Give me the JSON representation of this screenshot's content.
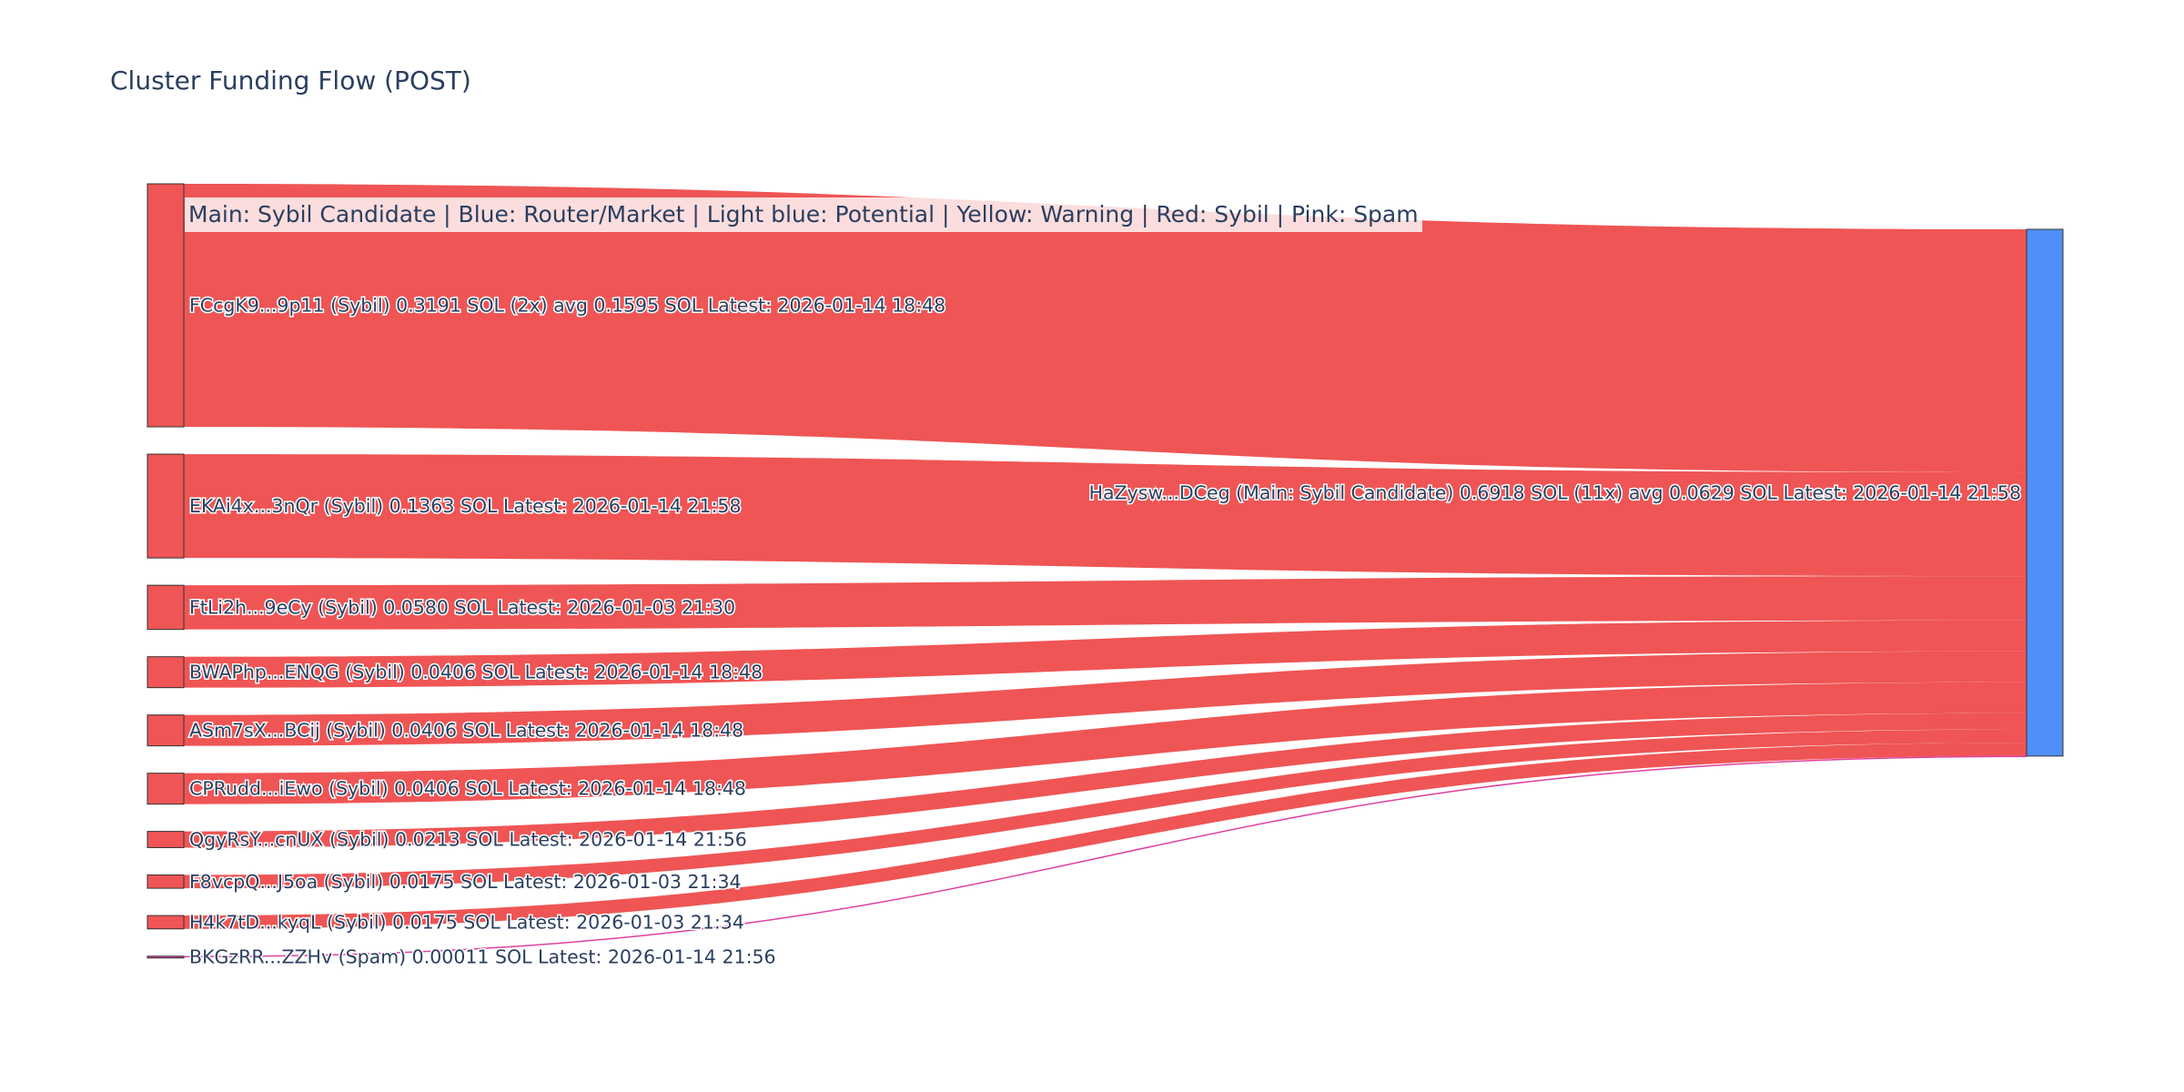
{
  "title": "Cluster Funding Flow (POST)",
  "legend_note": "Main: Sybil Candidate  |  Blue: Router/Market | Light blue: Potential | Yellow: Warning | Red: Sybil | Pink: Spam",
  "colors": {
    "sybil": "#ef5555",
    "spam": "#e040a0",
    "main_node": "#4f8ff7",
    "node_outline": "#333333"
  },
  "chart_data": {
    "type": "sankey",
    "unit": "SOL",
    "target": {
      "label": "HaZysw...DCeg (Main: Sybil Candidate) 0.6918 SOL (11x) avg 0.0629 SOL Latest: 2026-01-14 21:58",
      "value": 0.6918,
      "color": "#4f8ff7"
    },
    "sources": [
      {
        "label": "FCcgK9...9p11 (Sybil) 0.3191 SOL (2x) avg 0.1595 SOL Latest: 2026-01-14 18:48",
        "value": 0.3191,
        "category": "sybil"
      },
      {
        "label": "EKAi4x...3nQr (Sybil) 0.1363 SOL Latest: 2026-01-14 21:58",
        "value": 0.1363,
        "category": "sybil"
      },
      {
        "label": "FtLi2h...9eCy (Sybil) 0.0580 SOL Latest: 2026-01-03 21:30",
        "value": 0.058,
        "category": "sybil"
      },
      {
        "label": "BWAPhp...ENQG (Sybil) 0.0406 SOL Latest: 2026-01-14 18:48",
        "value": 0.0406,
        "category": "sybil"
      },
      {
        "label": "ASm7sX...BCij (Sybil) 0.0406 SOL Latest: 2026-01-14 18:48",
        "value": 0.0406,
        "category": "sybil"
      },
      {
        "label": "CPRudd...iEwo (Sybil) 0.0406 SOL Latest: 2026-01-14 18:48",
        "value": 0.0406,
        "category": "sybil"
      },
      {
        "label": "QgyRsY...cnUX (Sybil) 0.0213 SOL Latest: 2026-01-14 21:56",
        "value": 0.0213,
        "category": "sybil"
      },
      {
        "label": "F8vcpQ...J5oa (Sybil) 0.0175 SOL Latest: 2026-01-03 21:34",
        "value": 0.0175,
        "category": "sybil"
      },
      {
        "label": "H4k7tD...kyqL (Sybil) 0.0175 SOL Latest: 2026-01-03 21:34",
        "value": 0.0175,
        "category": "sybil"
      },
      {
        "label": "BKGzRR...ZZHv (Spam) 0.00011 SOL Latest: 2026-01-14 21:56",
        "value": 0.00011,
        "category": "spam"
      }
    ]
  }
}
